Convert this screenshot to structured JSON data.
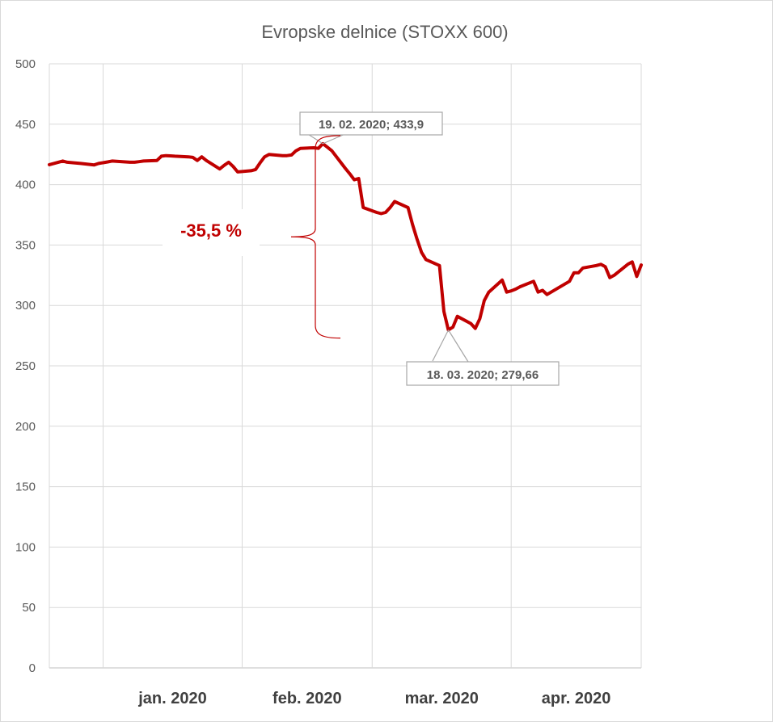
{
  "chart_data": {
    "type": "line",
    "title": "Evropske delnice (STOXX 600)",
    "ylim": [
      0,
      500
    ],
    "yticks": [
      "0",
      "50",
      "100",
      "150",
      "200",
      "250",
      "300",
      "350",
      "400",
      "450",
      "500"
    ],
    "xlim": [
      "2019-12-20",
      "2020-04-30"
    ],
    "month_ticks": [
      {
        "label": "jan. 2020",
        "start": "2020-01-01",
        "end": "2020-02-01"
      },
      {
        "label": "feb. 2020",
        "start": "2020-02-01",
        "end": "2020-03-01"
      },
      {
        "label": "mar. 2020",
        "start": "2020-03-01",
        "end": "2020-04-01"
      },
      {
        "label": "apr. 2020",
        "start": "2020-04-01",
        "end": "2020-04-30"
      }
    ],
    "gridlines_x": [
      "2020-01-01",
      "2020-02-01",
      "2020-03-01",
      "2020-04-01"
    ],
    "series": [
      {
        "color": "#c00000",
        "points": [
          [
            "2019-12-20",
            416.5
          ],
          [
            "2019-12-23",
            419.5
          ],
          [
            "2019-12-24",
            418.5
          ],
          [
            "2019-12-27",
            417.5
          ],
          [
            "2019-12-30",
            416.3
          ],
          [
            "2019-12-31",
            417.5
          ],
          [
            "2020-01-02",
            418.8
          ],
          [
            "2020-01-03",
            419.5
          ],
          [
            "2020-01-06",
            418.8
          ],
          [
            "2020-01-07",
            418.5
          ],
          [
            "2020-01-08",
            418.5
          ],
          [
            "2020-01-09",
            419.0
          ],
          [
            "2020-01-10",
            419.5
          ],
          [
            "2020-01-13",
            420.0
          ],
          [
            "2020-01-14",
            423.5
          ],
          [
            "2020-01-15",
            424.0
          ],
          [
            "2020-01-16",
            423.8
          ],
          [
            "2020-01-17",
            423.5
          ],
          [
            "2020-01-20",
            423.0
          ],
          [
            "2020-01-21",
            422.5
          ],
          [
            "2020-01-22",
            420.0
          ],
          [
            "2020-01-23",
            423.0
          ],
          [
            "2020-01-24",
            420.0
          ],
          [
            "2020-01-27",
            413.0
          ],
          [
            "2020-01-28",
            416.0
          ],
          [
            "2020-01-29",
            418.5
          ],
          [
            "2020-01-30",
            415.0
          ],
          [
            "2020-01-31",
            410.5
          ],
          [
            "2020-02-03",
            411.5
          ],
          [
            "2020-02-04",
            412.5
          ],
          [
            "2020-02-05",
            418.0
          ],
          [
            "2020-02-06",
            423.0
          ],
          [
            "2020-02-07",
            425.0
          ],
          [
            "2020-02-10",
            424.0
          ],
          [
            "2020-02-11",
            424.0
          ],
          [
            "2020-02-12",
            424.5
          ],
          [
            "2020-02-13",
            428.0
          ],
          [
            "2020-02-14",
            430.0
          ],
          [
            "2020-02-17",
            430.5
          ],
          [
            "2020-02-18",
            430.0
          ],
          [
            "2020-02-19",
            433.9
          ],
          [
            "2020-02-20",
            431.0
          ],
          [
            "2020-02-21",
            428.0
          ],
          [
            "2020-02-24",
            413.5
          ],
          [
            "2020-02-25",
            409.0
          ],
          [
            "2020-02-26",
            404.0
          ],
          [
            "2020-02-27",
            405.0
          ],
          [
            "2020-02-28",
            381.0
          ],
          [
            "2020-03-02",
            377.0
          ],
          [
            "2020-03-03",
            376.0
          ],
          [
            "2020-03-04",
            377.0
          ],
          [
            "2020-03-05",
            381.0
          ],
          [
            "2020-03-06",
            386.0
          ],
          [
            "2020-03-09",
            381.0
          ],
          [
            "2020-03-10",
            367.0
          ],
          [
            "2020-03-11",
            355.0
          ],
          [
            "2020-03-12",
            344.0
          ],
          [
            "2020-03-13",
            338.0
          ],
          [
            "2020-03-16",
            333.0
          ],
          [
            "2020-03-17",
            295.0
          ],
          [
            "2020-03-18",
            279.66
          ],
          [
            "2020-03-19",
            282.0
          ],
          [
            "2020-03-20",
            291.0
          ],
          [
            "2020-03-23",
            285.0
          ],
          [
            "2020-03-24",
            281.0
          ],
          [
            "2020-03-25",
            289.0
          ],
          [
            "2020-03-26",
            304.0
          ],
          [
            "2020-03-27",
            311.0
          ],
          [
            "2020-03-30",
            321.0
          ],
          [
            "2020-03-31",
            311.0
          ],
          [
            "2020-04-01",
            312.0
          ],
          [
            "2020-04-02",
            313.5
          ],
          [
            "2020-04-03",
            315.5
          ],
          [
            "2020-04-06",
            320.0
          ],
          [
            "2020-04-07",
            311.0
          ],
          [
            "2020-04-08",
            312.5
          ],
          [
            "2020-04-09",
            309.0
          ],
          [
            "2020-04-14",
            320.0
          ],
          [
            "2020-04-15",
            327.0
          ],
          [
            "2020-04-16",
            327.0
          ],
          [
            "2020-04-17",
            331.0
          ],
          [
            "2020-04-20",
            333.0
          ],
          [
            "2020-04-21",
            334.0
          ],
          [
            "2020-04-22",
            332.0
          ],
          [
            "2020-04-23",
            323.0
          ],
          [
            "2020-04-24",
            325.0
          ],
          [
            "2020-04-27",
            334.0
          ],
          [
            "2020-04-28",
            336.0
          ],
          [
            "2020-04-29",
            324.0
          ],
          [
            "2020-04-30",
            333.5
          ]
        ]
      }
    ],
    "annotations": [
      {
        "label": "19. 02. 2020; 433,9",
        "date": "2020-02-19",
        "value": 433.9
      },
      {
        "label": "18. 03. 2020; 279,66",
        "date": "2020-03-18",
        "value": 279.66
      },
      {
        "label": "-35,5 %",
        "from": 433.9,
        "to": 279.66
      }
    ]
  }
}
